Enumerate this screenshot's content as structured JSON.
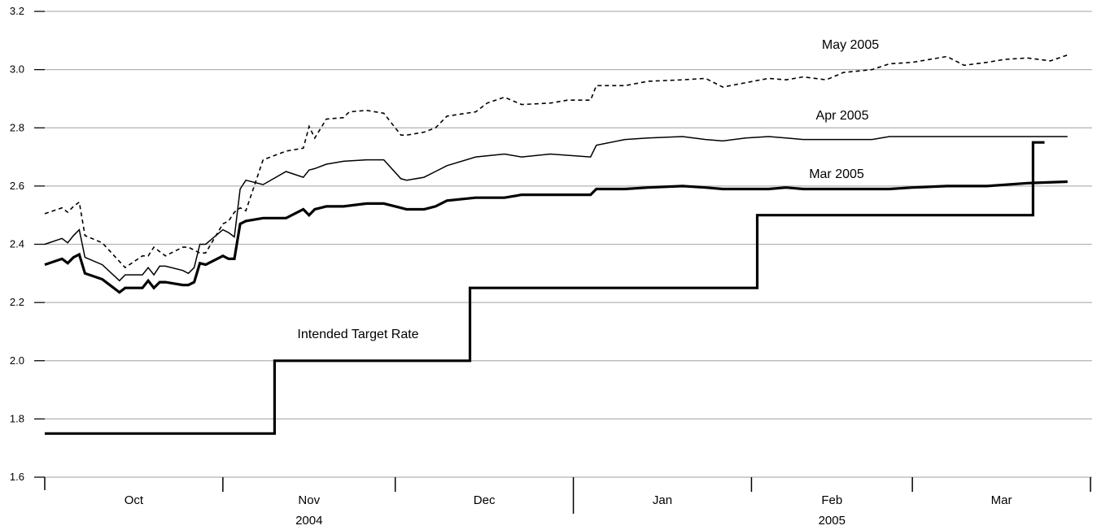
{
  "chart_data": {
    "type": "line",
    "title": "",
    "xlabel": "",
    "ylabel": "",
    "ylim": [
      1.6,
      3.2
    ],
    "y_ticks": [
      "1.6",
      "1.8",
      "2.0",
      "2.2",
      "2.4",
      "2.6",
      "2.8",
      "3.0",
      "3.2"
    ],
    "grid": true,
    "x_range": [
      "2004-10-01",
      "2005-03-31"
    ],
    "months": [
      "Oct",
      "Nov",
      "Dec",
      "Jan",
      "Feb",
      "Mar"
    ],
    "years": [
      "2004",
      "2005"
    ],
    "series": [
      {
        "name": "May 2005",
        "style": "dashed",
        "x": [
          "2004-10-01",
          "2004-10-04",
          "2004-10-05",
          "2004-10-06",
          "2004-10-07",
          "2004-10-08",
          "2004-10-11",
          "2004-10-15",
          "2004-10-18",
          "2004-10-19",
          "2004-10-20",
          "2004-10-22",
          "2004-10-25",
          "2004-10-26",
          "2004-10-27",
          "2004-10-28",
          "2004-10-29",
          "2004-11-01",
          "2004-11-02",
          "2004-11-03",
          "2004-11-04",
          "2004-11-05",
          "2004-11-08",
          "2004-11-12",
          "2004-11-15",
          "2004-11-16",
          "2004-11-17",
          "2004-11-19",
          "2004-11-22",
          "2004-11-23",
          "2004-11-26",
          "2004-11-29",
          "2004-12-02",
          "2004-12-03",
          "2004-12-06",
          "2004-12-08",
          "2004-12-10",
          "2004-12-15",
          "2004-12-17",
          "2004-12-20",
          "2004-12-23",
          "2004-12-28",
          "2004-12-31",
          "2005-01-04",
          "2005-01-05",
          "2005-01-10",
          "2005-01-14",
          "2005-01-20",
          "2005-01-24",
          "2005-01-27",
          "2005-01-31",
          "2005-02-04",
          "2005-02-07",
          "2005-02-10",
          "2005-02-14",
          "2005-02-17",
          "2005-02-22",
          "2005-02-25",
          "2005-03-01",
          "2005-03-04",
          "2005-03-07",
          "2005-03-10",
          "2005-03-14",
          "2005-03-17",
          "2005-03-21",
          "2005-03-25",
          "2005-03-28"
        ],
        "values": [
          2.505,
          2.525,
          2.51,
          2.53,
          2.545,
          2.43,
          2.405,
          2.32,
          2.36,
          2.36,
          2.39,
          2.36,
          2.39,
          2.39,
          2.38,
          2.37,
          2.37,
          2.47,
          2.48,
          2.51,
          2.525,
          2.515,
          2.69,
          2.72,
          2.73,
          2.805,
          2.765,
          2.83,
          2.835,
          2.855,
          2.86,
          2.85,
          2.775,
          2.775,
          2.785,
          2.8,
          2.84,
          2.855,
          2.885,
          2.905,
          2.88,
          2.885,
          2.895,
          2.895,
          2.945,
          2.945,
          2.96,
          2.965,
          2.97,
          2.94,
          2.955,
          2.97,
          2.965,
          2.975,
          2.965,
          2.99,
          3.0,
          3.02,
          3.025,
          3.035,
          3.045,
          3.015,
          3.025,
          3.035,
          3.04,
          3.03,
          3.05
        ]
      },
      {
        "name": "Apr 2005",
        "style": "thin",
        "x": [
          "2004-10-01",
          "2004-10-04",
          "2004-10-05",
          "2004-10-06",
          "2004-10-07",
          "2004-10-08",
          "2004-10-11",
          "2004-10-14",
          "2004-10-15",
          "2004-10-18",
          "2004-10-19",
          "2004-10-20",
          "2004-10-21",
          "2004-10-22",
          "2004-10-25",
          "2004-10-26",
          "2004-10-27",
          "2004-10-28",
          "2004-10-29",
          "2004-11-01",
          "2004-11-02",
          "2004-11-03",
          "2004-11-04",
          "2004-11-05",
          "2004-11-08",
          "2004-11-12",
          "2004-11-15",
          "2004-11-16",
          "2004-11-17",
          "2004-11-19",
          "2004-11-22",
          "2004-11-26",
          "2004-11-29",
          "2004-12-02",
          "2004-12-03",
          "2004-12-06",
          "2004-12-08",
          "2004-12-10",
          "2004-12-15",
          "2004-12-20",
          "2004-12-23",
          "2004-12-28",
          "2005-01-04",
          "2005-01-05",
          "2005-01-10",
          "2005-01-14",
          "2005-01-20",
          "2005-01-24",
          "2005-01-27",
          "2005-01-31",
          "2005-02-04",
          "2005-02-07",
          "2005-02-10",
          "2005-02-14",
          "2005-02-17",
          "2005-02-22",
          "2005-02-25",
          "2005-03-01",
          "2005-03-07",
          "2005-03-14",
          "2005-03-21",
          "2005-03-28"
        ],
        "values": [
          2.4,
          2.42,
          2.405,
          2.43,
          2.45,
          2.355,
          2.33,
          2.275,
          2.295,
          2.295,
          2.32,
          2.295,
          2.325,
          2.325,
          2.31,
          2.3,
          2.32,
          2.4,
          2.4,
          2.45,
          2.44,
          2.425,
          2.59,
          2.62,
          2.605,
          2.65,
          2.63,
          2.655,
          2.66,
          2.675,
          2.685,
          2.69,
          2.69,
          2.625,
          2.62,
          2.63,
          2.65,
          2.67,
          2.7,
          2.71,
          2.7,
          2.71,
          2.7,
          2.74,
          2.76,
          2.765,
          2.77,
          2.76,
          2.755,
          2.765,
          2.77,
          2.765,
          2.76,
          2.76,
          2.76,
          2.76,
          2.77,
          2.77,
          2.77,
          2.77,
          2.77,
          2.77
        ]
      },
      {
        "name": "Mar 2005",
        "style": "thick",
        "x": [
          "2004-10-01",
          "2004-10-04",
          "2004-10-05",
          "2004-10-06",
          "2004-10-07",
          "2004-10-08",
          "2004-10-11",
          "2004-10-14",
          "2004-10-15",
          "2004-10-18",
          "2004-10-19",
          "2004-10-20",
          "2004-10-21",
          "2004-10-22",
          "2004-10-25",
          "2004-10-26",
          "2004-10-27",
          "2004-10-28",
          "2004-10-29",
          "2004-11-01",
          "2004-11-02",
          "2004-11-03",
          "2004-11-04",
          "2004-11-05",
          "2004-11-08",
          "2004-11-12",
          "2004-11-15",
          "2004-11-16",
          "2004-11-17",
          "2004-11-19",
          "2004-11-22",
          "2004-11-26",
          "2004-11-29",
          "2004-12-02",
          "2004-12-03",
          "2004-12-06",
          "2004-12-08",
          "2004-12-10",
          "2004-12-15",
          "2004-12-20",
          "2004-12-23",
          "2004-12-28",
          "2005-01-04",
          "2005-01-05",
          "2005-01-10",
          "2005-01-14",
          "2005-01-20",
          "2005-01-24",
          "2005-01-27",
          "2005-01-31",
          "2005-02-04",
          "2005-02-07",
          "2005-02-10",
          "2005-02-14",
          "2005-02-17",
          "2005-02-22",
          "2005-02-25",
          "2005-03-01",
          "2005-03-07",
          "2005-03-14",
          "2005-03-21",
          "2005-03-28"
        ],
        "values": [
          2.33,
          2.35,
          2.335,
          2.355,
          2.365,
          2.3,
          2.28,
          2.235,
          2.25,
          2.25,
          2.275,
          2.25,
          2.27,
          2.27,
          2.26,
          2.26,
          2.27,
          2.335,
          2.33,
          2.36,
          2.35,
          2.35,
          2.47,
          2.48,
          2.49,
          2.49,
          2.52,
          2.5,
          2.52,
          2.53,
          2.53,
          2.54,
          2.54,
          2.525,
          2.52,
          2.52,
          2.53,
          2.55,
          2.56,
          2.56,
          2.57,
          2.57,
          2.57,
          2.59,
          2.59,
          2.595,
          2.6,
          2.595,
          2.59,
          2.59,
          2.59,
          2.595,
          2.59,
          2.59,
          2.59,
          2.59,
          2.59,
          2.595,
          2.6,
          2.6,
          2.61,
          2.615
        ]
      },
      {
        "name": "Intended Target Rate",
        "style": "step",
        "x": [
          "2004-10-01",
          "2004-11-10",
          "2004-11-10",
          "2004-12-14",
          "2004-12-14",
          "2005-02-02",
          "2005-02-02",
          "2005-03-22",
          "2005-03-22",
          "2005-03-24"
        ],
        "values": [
          1.75,
          1.75,
          2.0,
          2.0,
          2.25,
          2.25,
          2.5,
          2.5,
          2.75,
          2.75
        ]
      }
    ]
  }
}
